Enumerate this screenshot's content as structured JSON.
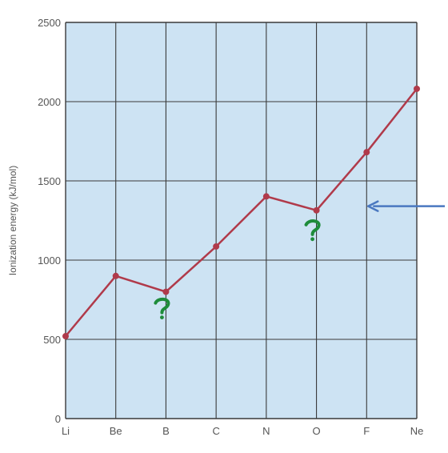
{
  "chart_data": {
    "type": "line",
    "title": "",
    "xlabel": "",
    "ylabel": "Ionization energy (kJ/mol)",
    "categories": [
      "Li",
      "Be",
      "B",
      "C",
      "N",
      "O",
      "F",
      "Ne"
    ],
    "series": [
      {
        "values": [
          520,
          900,
          800,
          1086,
          1402,
          1314,
          1681,
          2081
        ]
      }
    ],
    "y_ticks": [
      "0",
      "500",
      "1000",
      "1500",
      "2000",
      "2500"
    ],
    "ylim": [
      0,
      2500
    ],
    "grid": true,
    "annotations": [
      {
        "type": "question-mark",
        "near": "B"
      },
      {
        "type": "question-mark",
        "near": "O"
      },
      {
        "type": "arrow",
        "direction": "left",
        "points_to": "between O and F"
      }
    ],
    "colors": {
      "plot_background": "#cde3f3",
      "grid": "#3a3a3a",
      "line": "#b03a4a",
      "annotation": "#1e8c3a",
      "arrow": "#4a78c0"
    }
  }
}
